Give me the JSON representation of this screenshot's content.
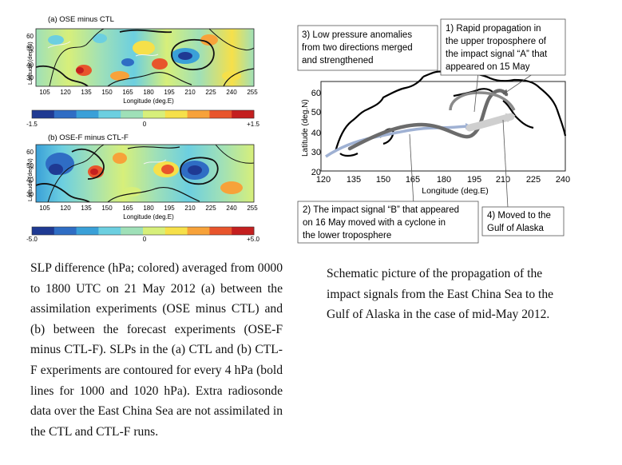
{
  "panel_a": {
    "title": "(a) OSE minus CTL",
    "ylabel": "Latitude (deg.N)",
    "xlabel": "Longitude (deg.E)",
    "yticks": [
      "60",
      "50",
      "40",
      "30"
    ],
    "xticks": [
      "105",
      "120",
      "135",
      "150",
      "165",
      "180",
      "195",
      "210",
      "225",
      "240",
      "255"
    ],
    "colorbar_ticks": [
      "-1.5",
      "0",
      "+1.5"
    ]
  },
  "panel_b": {
    "title": "(b) OSE-F minus CTL-F",
    "ylabel": "Latitude (deg.N)",
    "xlabel": "Longitude (deg.E)",
    "yticks": [
      "60",
      "50",
      "40",
      "30"
    ],
    "xticks": [
      "105",
      "120",
      "135",
      "150",
      "165",
      "180",
      "195",
      "210",
      "225",
      "240",
      "255"
    ],
    "colorbar_ticks": [
      "-5.0",
      "0",
      "+5.0"
    ]
  },
  "colorbar_colors": [
    "#1f3a93",
    "#2f6dc4",
    "#3aa0d8",
    "#6ccfe0",
    "#9fe0b8",
    "#d7ef7a",
    "#f6e04a",
    "#f7a23a",
    "#e8552c",
    "#c41f1f"
  ],
  "schematic": {
    "ylabel": "Latitude (deg.N)",
    "xlabel": "Longitude (deg.E)",
    "yticks": [
      "60",
      "50",
      "40",
      "30",
      "20"
    ],
    "xticks": [
      "120",
      "135",
      "150",
      "165",
      "180",
      "195",
      "210",
      "225",
      "240"
    ],
    "annotations": {
      "note1": [
        "1) Rapid propagation in",
        "the upper troposphere of",
        "the impact signal “A” that",
        "appeared on 15 May"
      ],
      "note2": [
        "2) The impact signal “B” that appeared",
        "on 16 May moved with a cyclone in",
        "the lower troposphere"
      ],
      "note3": [
        "3) Low pressure anomalies",
        "from two directions merged",
        "and strengthened"
      ],
      "note4": [
        "4) Moved to the",
        "Gulf of Alaska"
      ]
    }
  },
  "captions": {
    "left": "SLP difference (hPa; colored) averaged from 0000 to 1800 UTC on 21 May 2012 (a) between the assimilation experiments (OSE minus CTL) and (b) between the forecast experiments (OSE-F minus CTL-F). SLPs in the (a) CTL and (b) CTL-F experiments are contoured for every 4 hPa (bold lines for 1000 and 1020 hPa). Extra radiosonde data over the East China Sea are not assimilated in the CTL and CTL-F runs.",
    "right": "Schematic picture of the propagation of the impact signals from the East China Sea to the Gulf of Alaska in the case of mid-May 2012."
  }
}
